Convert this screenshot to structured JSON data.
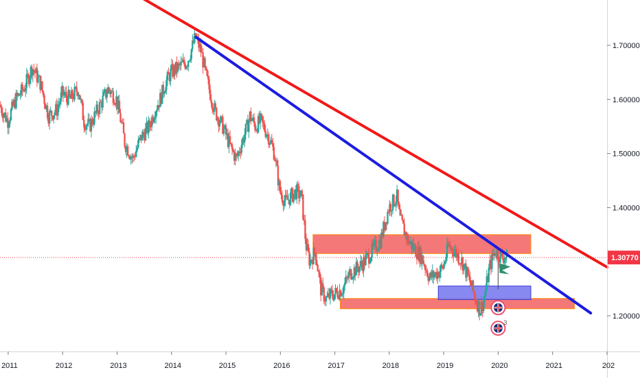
{
  "chart_data": {
    "type": "candlestick",
    "instrument_hint": "",
    "x_range": [
      2010.85,
      2022.0
    ],
    "y_range": [
      1.14,
      1.79
    ],
    "x_ticks": [
      "2011",
      "2012",
      "2013",
      "2014",
      "2015",
      "2016",
      "2017",
      "2018",
      "2019",
      "2020",
      "2021",
      "202"
    ],
    "y_ticks": [
      "1.70000",
      "1.60000",
      "1.50000",
      "1.40000",
      "1.20000"
    ],
    "last_price_label": "1.30770",
    "last_price": 1.3077,
    "colors": {
      "up": "#26a69a",
      "down": "#ef5350",
      "trend_red": "#f21818",
      "trend_blue": "#1c1ce0",
      "zone_red": "#f26060",
      "zone_blue": "#7b7bef",
      "last_price": "#f23645",
      "axis_text": "#131722",
      "grid": "#ffffff"
    },
    "price_path": [
      [
        2010.85,
        1.59
      ],
      [
        2011.0,
        1.56
      ],
      [
        2011.15,
        1.6
      ],
      [
        2011.3,
        1.62
      ],
      [
        2011.45,
        1.66
      ],
      [
        2011.6,
        1.63
      ],
      [
        2011.75,
        1.57
      ],
      [
        2011.9,
        1.58
      ],
      [
        2012.0,
        1.61
      ],
      [
        2012.15,
        1.6
      ],
      [
        2012.3,
        1.62
      ],
      [
        2012.4,
        1.56
      ],
      [
        2012.5,
        1.55
      ],
      [
        2012.7,
        1.59
      ],
      [
        2012.85,
        1.62
      ],
      [
        2013.0,
        1.6
      ],
      [
        2013.1,
        1.55
      ],
      [
        2013.15,
        1.52
      ],
      [
        2013.3,
        1.49
      ],
      [
        2013.45,
        1.53
      ],
      [
        2013.6,
        1.55
      ],
      [
        2013.7,
        1.58
      ],
      [
        2013.8,
        1.6
      ],
      [
        2013.9,
        1.63
      ],
      [
        2014.0,
        1.65
      ],
      [
        2014.15,
        1.66
      ],
      [
        2014.3,
        1.67
      ],
      [
        2014.45,
        1.715
      ],
      [
        2014.55,
        1.69
      ],
      [
        2014.65,
        1.64
      ],
      [
        2014.8,
        1.58
      ],
      [
        2014.95,
        1.55
      ],
      [
        2015.1,
        1.51
      ],
      [
        2015.2,
        1.49
      ],
      [
        2015.3,
        1.52
      ],
      [
        2015.4,
        1.55
      ],
      [
        2015.45,
        1.57
      ],
      [
        2015.55,
        1.55
      ],
      [
        2015.65,
        1.56
      ],
      [
        2015.8,
        1.53
      ],
      [
        2015.9,
        1.5
      ],
      [
        2016.0,
        1.43
      ],
      [
        2016.1,
        1.41
      ],
      [
        2016.2,
        1.42
      ],
      [
        2016.3,
        1.43
      ],
      [
        2016.4,
        1.42
      ],
      [
        2016.48,
        1.33
      ],
      [
        2016.55,
        1.3
      ],
      [
        2016.65,
        1.32
      ],
      [
        2016.75,
        1.25
      ],
      [
        2016.85,
        1.23
      ],
      [
        2016.95,
        1.24
      ],
      [
        2017.0,
        1.24
      ],
      [
        2017.15,
        1.25
      ],
      [
        2017.3,
        1.28
      ],
      [
        2017.45,
        1.29
      ],
      [
        2017.55,
        1.3
      ],
      [
        2017.7,
        1.32
      ],
      [
        2017.85,
        1.34
      ],
      [
        2018.0,
        1.4
      ],
      [
        2018.15,
        1.42
      ],
      [
        2018.2,
        1.38
      ],
      [
        2018.35,
        1.34
      ],
      [
        2018.5,
        1.32
      ],
      [
        2018.6,
        1.31
      ],
      [
        2018.75,
        1.27
      ],
      [
        2018.9,
        1.28
      ],
      [
        2019.0,
        1.29
      ],
      [
        2019.1,
        1.33
      ],
      [
        2019.2,
        1.32
      ],
      [
        2019.35,
        1.3
      ],
      [
        2019.5,
        1.26
      ],
      [
        2019.6,
        1.23
      ],
      [
        2019.68,
        1.21
      ],
      [
        2019.75,
        1.23
      ],
      [
        2019.85,
        1.29
      ],
      [
        2019.95,
        1.32
      ],
      [
        2020.05,
        1.31
      ],
      [
        2020.15,
        1.3077
      ]
    ],
    "trendlines": [
      {
        "color": "red",
        "from": [
          2013.5,
          1.785
        ],
        "to": [
          2022.0,
          1.29
        ]
      },
      {
        "color": "blue",
        "from": [
          2014.45,
          1.715
        ],
        "to": [
          2021.7,
          1.205
        ]
      }
    ],
    "zones": [
      {
        "color": "red",
        "x_from": 2016.6,
        "x_to": 2020.6,
        "y_low": 1.315,
        "y_high": 1.35
      },
      {
        "color": "red",
        "x_from": 2017.1,
        "x_to": 2021.4,
        "y_low": 1.213,
        "y_high": 1.232
      },
      {
        "color": "blue",
        "x_from": 2018.9,
        "x_to": 2020.6,
        "y_low": 1.23,
        "y_high": 1.255
      }
    ],
    "markers": [
      {
        "kind": "flag",
        "x": 2020.1,
        "y": 1.287
      },
      {
        "kind": "event-flag",
        "x": 2020.0,
        "y": 1.215
      },
      {
        "kind": "event-flag",
        "x": 2020.0,
        "y": 1.177,
        "badge": "3"
      }
    ]
  }
}
